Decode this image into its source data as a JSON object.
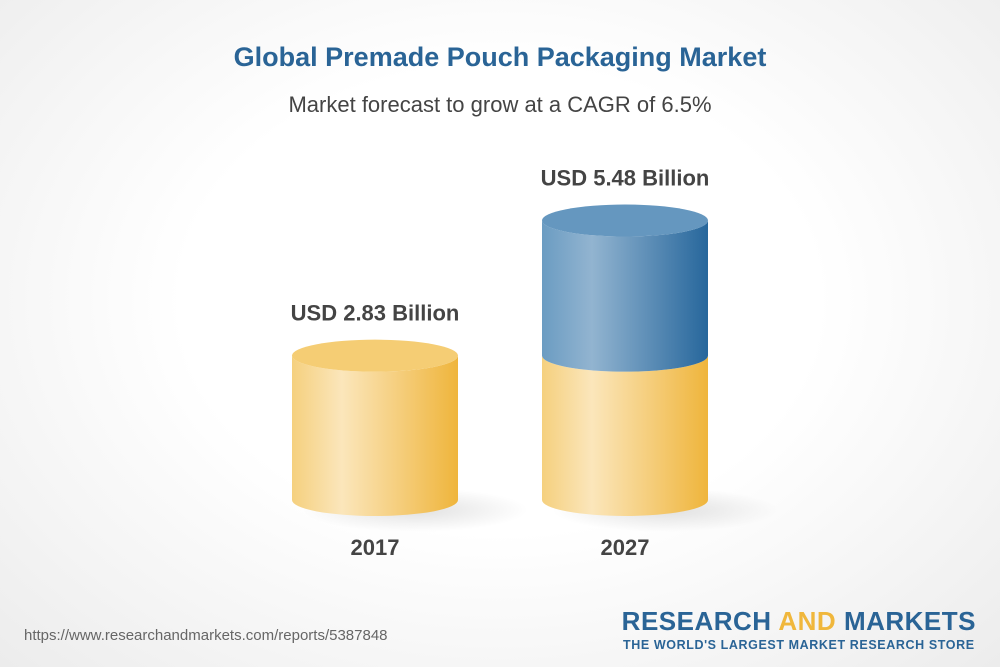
{
  "chart_data": {
    "type": "bar",
    "style": "3d-cylinder",
    "title": "Global Premade Pouch Packaging Market",
    "subtitle": "Market forecast to grow at a CAGR of 6.5%",
    "categories": [
      "2017",
      "2027"
    ],
    "values": [
      2.83,
      5.48
    ],
    "data_labels": [
      "USD 2.83 Billion",
      "USD 5.48 Billion"
    ],
    "unit": "USD Billion",
    "colors": {
      "base": "#f0b73c",
      "growth": "#2a6a9e",
      "title": "#2a6496"
    }
  },
  "footer": {
    "url": "https://www.researchandmarkets.com/reports/5387848",
    "logo_word1": "RESEARCH",
    "logo_word2": "AND",
    "logo_word3": "MARKETS",
    "tagline": "THE WORLD'S LARGEST MARKET RESEARCH STORE"
  }
}
